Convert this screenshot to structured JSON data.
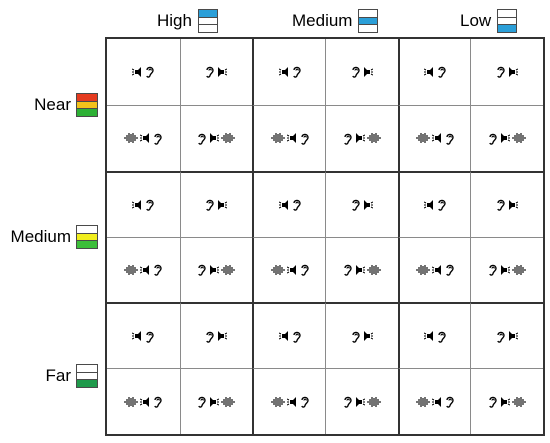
{
  "columns": [
    {
      "label": "High",
      "fill_segment": 0
    },
    {
      "label": "Medium",
      "fill_segment": 1
    },
    {
      "label": "Low",
      "fill_segment": 2
    }
  ],
  "rows": [
    {
      "label": "Near",
      "gradient": [
        "#e53b1f",
        "#f3c21b",
        "#2db135"
      ]
    },
    {
      "label": "Medium",
      "gradient": [
        "#ffffff",
        "#f1ee1d",
        "#3cbf3a"
      ]
    },
    {
      "label": "Far",
      "gradient": [
        "#ffffff",
        "#ffffff",
        "#1f9a4b"
      ]
    }
  ],
  "colors": {
    "level_fill": "#2b9fd8",
    "grid_major": "#333333",
    "grid_minor": "#8a8a8a",
    "glyph": "#000000"
  },
  "cell_patterns": [
    [
      "speaker-icon",
      "ear-icon"
    ],
    [
      "ear-icon",
      "speaker-icon-right"
    ],
    [
      "noise-wave-icon",
      "speaker-icon",
      "ear-icon"
    ],
    [
      "ear-icon",
      "speaker-icon-right",
      "noise-wave-icon"
    ]
  ]
}
